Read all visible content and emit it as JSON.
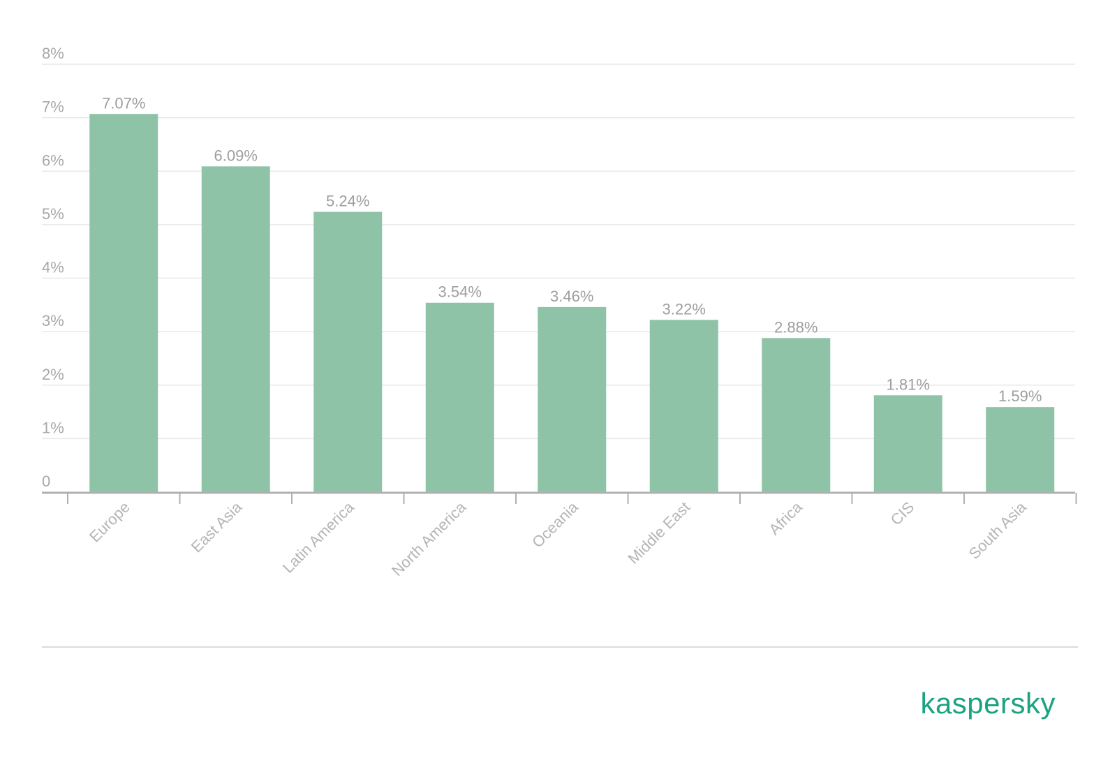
{
  "chart_data": {
    "type": "bar",
    "categories": [
      "Europe",
      "East Asia",
      "Latin America",
      "North America",
      "Oceania",
      "Middle East",
      "Africa",
      "CIS",
      "South Asia"
    ],
    "values": [
      7.07,
      6.09,
      5.24,
      3.54,
      3.46,
      3.22,
      2.88,
      1.81,
      1.59
    ],
    "value_labels": [
      "7.07%",
      "6.09%",
      "5.24%",
      "3.54%",
      "3.46%",
      "3.22%",
      "2.88%",
      "1.81%",
      "1.59%"
    ],
    "ylim": [
      0,
      8
    ],
    "yticks": [
      0,
      1,
      2,
      3,
      4,
      5,
      6,
      7,
      8
    ],
    "ytick_labels": [
      "0",
      "1%",
      "2%",
      "3%",
      "4%",
      "5%",
      "6%",
      "7%",
      "8%"
    ],
    "grid": true,
    "legend": "none"
  },
  "colors": {
    "bar": "#8fc3a7",
    "grid": "#e8e8e8",
    "axis": "#b0b0b0",
    "brand": "#1aa37f"
  },
  "brand": {
    "logo_text": "kaspersky"
  }
}
